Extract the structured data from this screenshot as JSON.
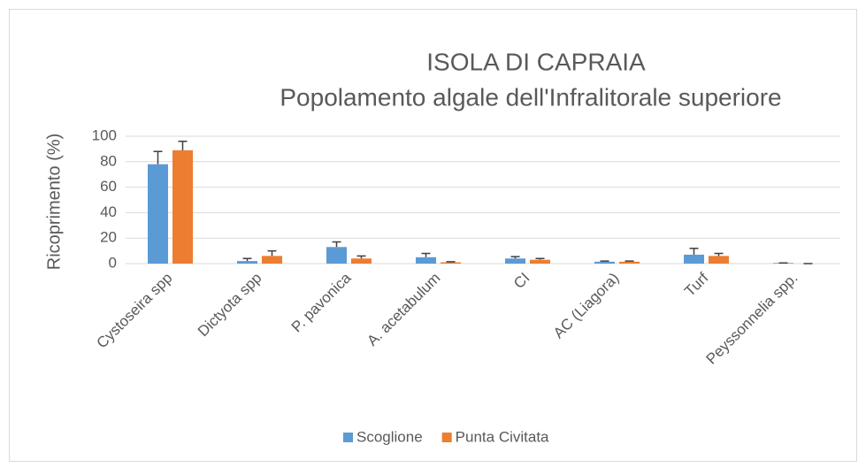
{
  "chart_data": {
    "type": "bar",
    "title": [
      "ISOLA DI CAPRAIA",
      "Popolamento algale dell'Infralitorale superiore"
    ],
    "ylabel": "Ricoprimento (%)",
    "categories": [
      "Cystoseira spp",
      "Dictyota spp",
      "P. pavonica",
      "A. acetabulum",
      "CI",
      "AC (Liagora)",
      "Turf",
      "Peyssonnelia spp."
    ],
    "series": [
      {
        "name": "Scoglione",
        "color": "#5b9bd5",
        "values": [
          78,
          2,
          13,
          5,
          4,
          1.5,
          7,
          0.5
        ],
        "errors": [
          10,
          2,
          4,
          3,
          1.5,
          0.5,
          5,
          0
        ]
      },
      {
        "name": "Punta Civitata",
        "color": "#ed7d31",
        "values": [
          89,
          6,
          4,
          1,
          3,
          1.5,
          6,
          0
        ],
        "errors": [
          7,
          4,
          2,
          0.5,
          1,
          0.5,
          2,
          0
        ]
      }
    ],
    "ylim": [
      0,
      100
    ],
    "yticks": [
      0,
      20,
      40,
      60,
      80,
      100
    ],
    "grid": true,
    "legend": "bottom"
  }
}
